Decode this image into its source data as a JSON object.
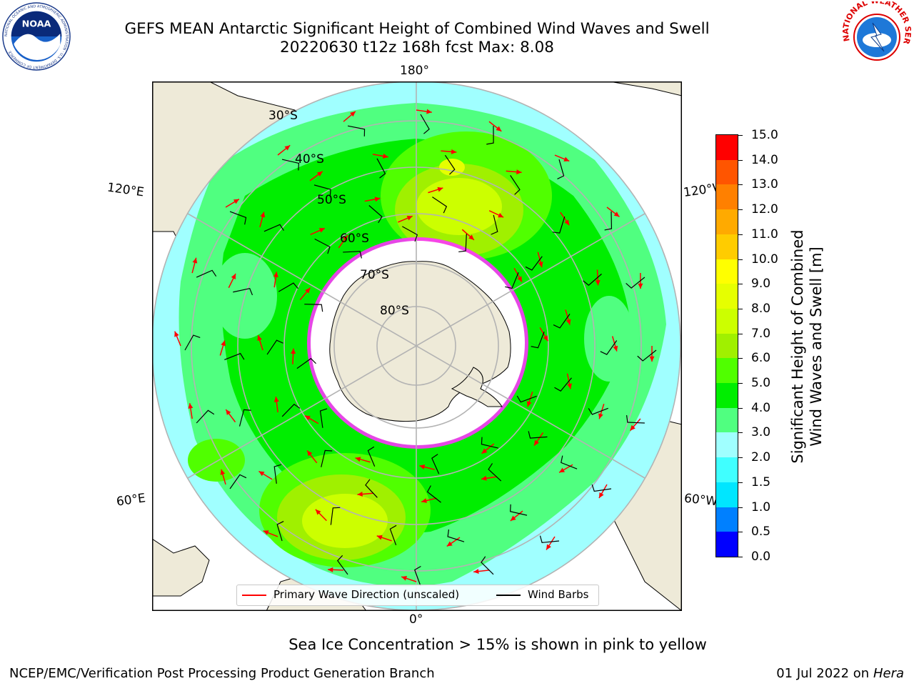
{
  "header": {
    "title": "GEFS MEAN Antarctic Significant Height of Combined Wind Waves and Swell",
    "subtitle": "20220630 t12z 168h fcst   Max: 8.08"
  },
  "logos": {
    "left": "noaa-logo",
    "right": "national-weather-service-logo",
    "noaa_text": "NOAA",
    "noaa_ring": "NATIONAL OCEANIC AND ATMOSPHERIC ADMINISTRATION · U.S. DEPARTMENT OF COMMERCE",
    "nws_ring": "NATIONAL WEATHER SERVICE"
  },
  "map": {
    "projection": "south-polar-stereographic",
    "lon_labels": {
      "top": "180°",
      "upper_left": "120°E",
      "upper_right": "120°W",
      "lower_left": "60°E",
      "lower_right": "60°W",
      "bottom": "0°"
    },
    "lat_labels": [
      "30°S",
      "40°S",
      "50°S",
      "60°S",
      "70°S",
      "80°S"
    ],
    "colors": {
      "land": "#eeead8",
      "ocean_outside": "#ffffff",
      "sea_ice_edge": "#ff33ff",
      "graticule": "#b3b3b3",
      "wave_arrow": "#ff0000",
      "wind_barb": "#000000"
    }
  },
  "legend": {
    "wave_label": "Primary Wave Direction (unscaled)",
    "barb_label": "Wind Barbs"
  },
  "colorbar": {
    "label_line1": "Significant Height of Combined",
    "label_line2": "Wind Waves and Swell [m]",
    "levels": [
      "0.0",
      "0.5",
      "1.0",
      "1.5",
      "2.0",
      "3.0",
      "4.0",
      "5.0",
      "6.0",
      "7.0",
      "8.0",
      "9.0",
      "10.0",
      "11.0",
      "12.0",
      "13.0",
      "14.0",
      "15.0"
    ],
    "colors": [
      "#0000ff",
      "#0080ff",
      "#00e6ff",
      "#40ffff",
      "#a0ffff",
      "#50ff80",
      "#00ee00",
      "#50ff00",
      "#a0f000",
      "#ccff00",
      "#e6ff00",
      "#ffff00",
      "#ffcc00",
      "#ffaa00",
      "#ff8000",
      "#ff5500",
      "#ff0000"
    ]
  },
  "note": "Sea Ice Concentration > 15% is shown in pink to yellow",
  "footer": {
    "left": "NCEP/EMC/Verification Post Processing Product Generation Branch",
    "right_date": "01 Jul 2022 on ",
    "right_host": "Hera"
  }
}
